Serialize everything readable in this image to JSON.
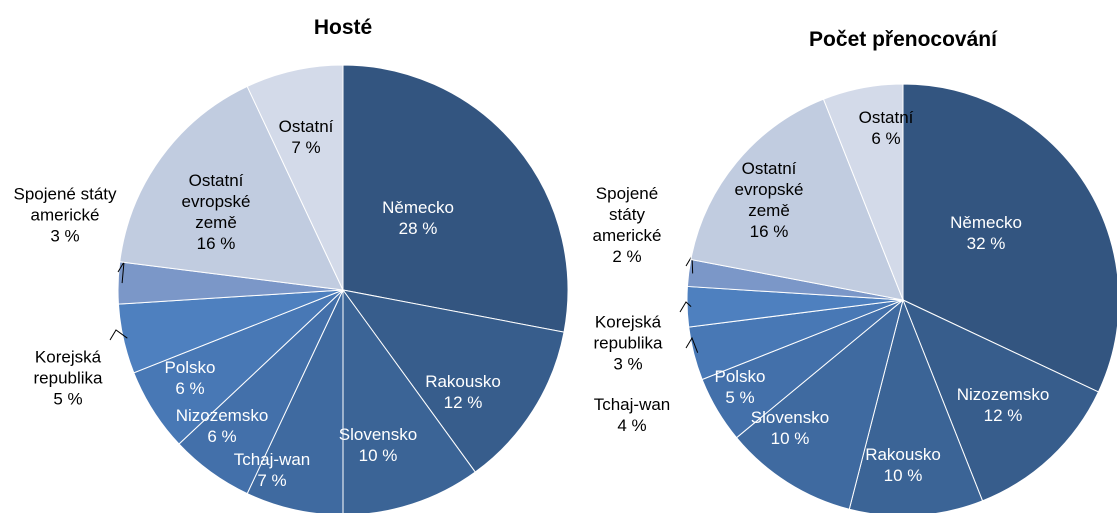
{
  "chart_data": [
    {
      "type": "pie",
      "title": "Hosté",
      "categories": [
        "Německo",
        "Rakousko",
        "Slovensko",
        "Tchaj-wan",
        "Nizozemsko",
        "Polsko",
        "Korejská republika",
        "Spojené státy americké",
        "Ostatní evropské země",
        "Ostatní"
      ],
      "values": [
        28,
        12,
        10,
        7,
        6,
        6,
        5,
        3,
        16,
        7
      ],
      "value_labels": [
        "28 %",
        "12 %",
        "10 %",
        "7 %",
        "6 %",
        "6 %",
        "5 %",
        "3 %",
        "16 %",
        "7 %"
      ],
      "colors": [
        "#335580",
        "#375D8C",
        "#3B6496",
        "#3F6AA0",
        "#4370AA",
        "#4878B5",
        "#4E80BF",
        "#7B97C8",
        "#C1CCE0",
        "#D3DAE9"
      ]
    },
    {
      "type": "pie",
      "title": "Počet přenocování",
      "categories": [
        "Německo",
        "Nizozemsko",
        "Rakousko",
        "Slovensko",
        "Polsko",
        "Tchaj-wan",
        "Korejská republika",
        "Spojené státy americké",
        "Ostatní evropské země",
        "Ostatní"
      ],
      "values": [
        32,
        12,
        10,
        10,
        5,
        4,
        3,
        2,
        16,
        6
      ],
      "value_labels": [
        "32 %",
        "12 %",
        "10 %",
        "10 %",
        "5 %",
        "4 %",
        "3 %",
        "2 %",
        "16 %",
        "6 %"
      ],
      "colors": [
        "#335580",
        "#375D8C",
        "#3B6496",
        "#3F6AA0",
        "#4370AA",
        "#4878B5",
        "#4E80BF",
        "#7B97C8",
        "#C1CCE0",
        "#D3DAE9"
      ]
    }
  ]
}
